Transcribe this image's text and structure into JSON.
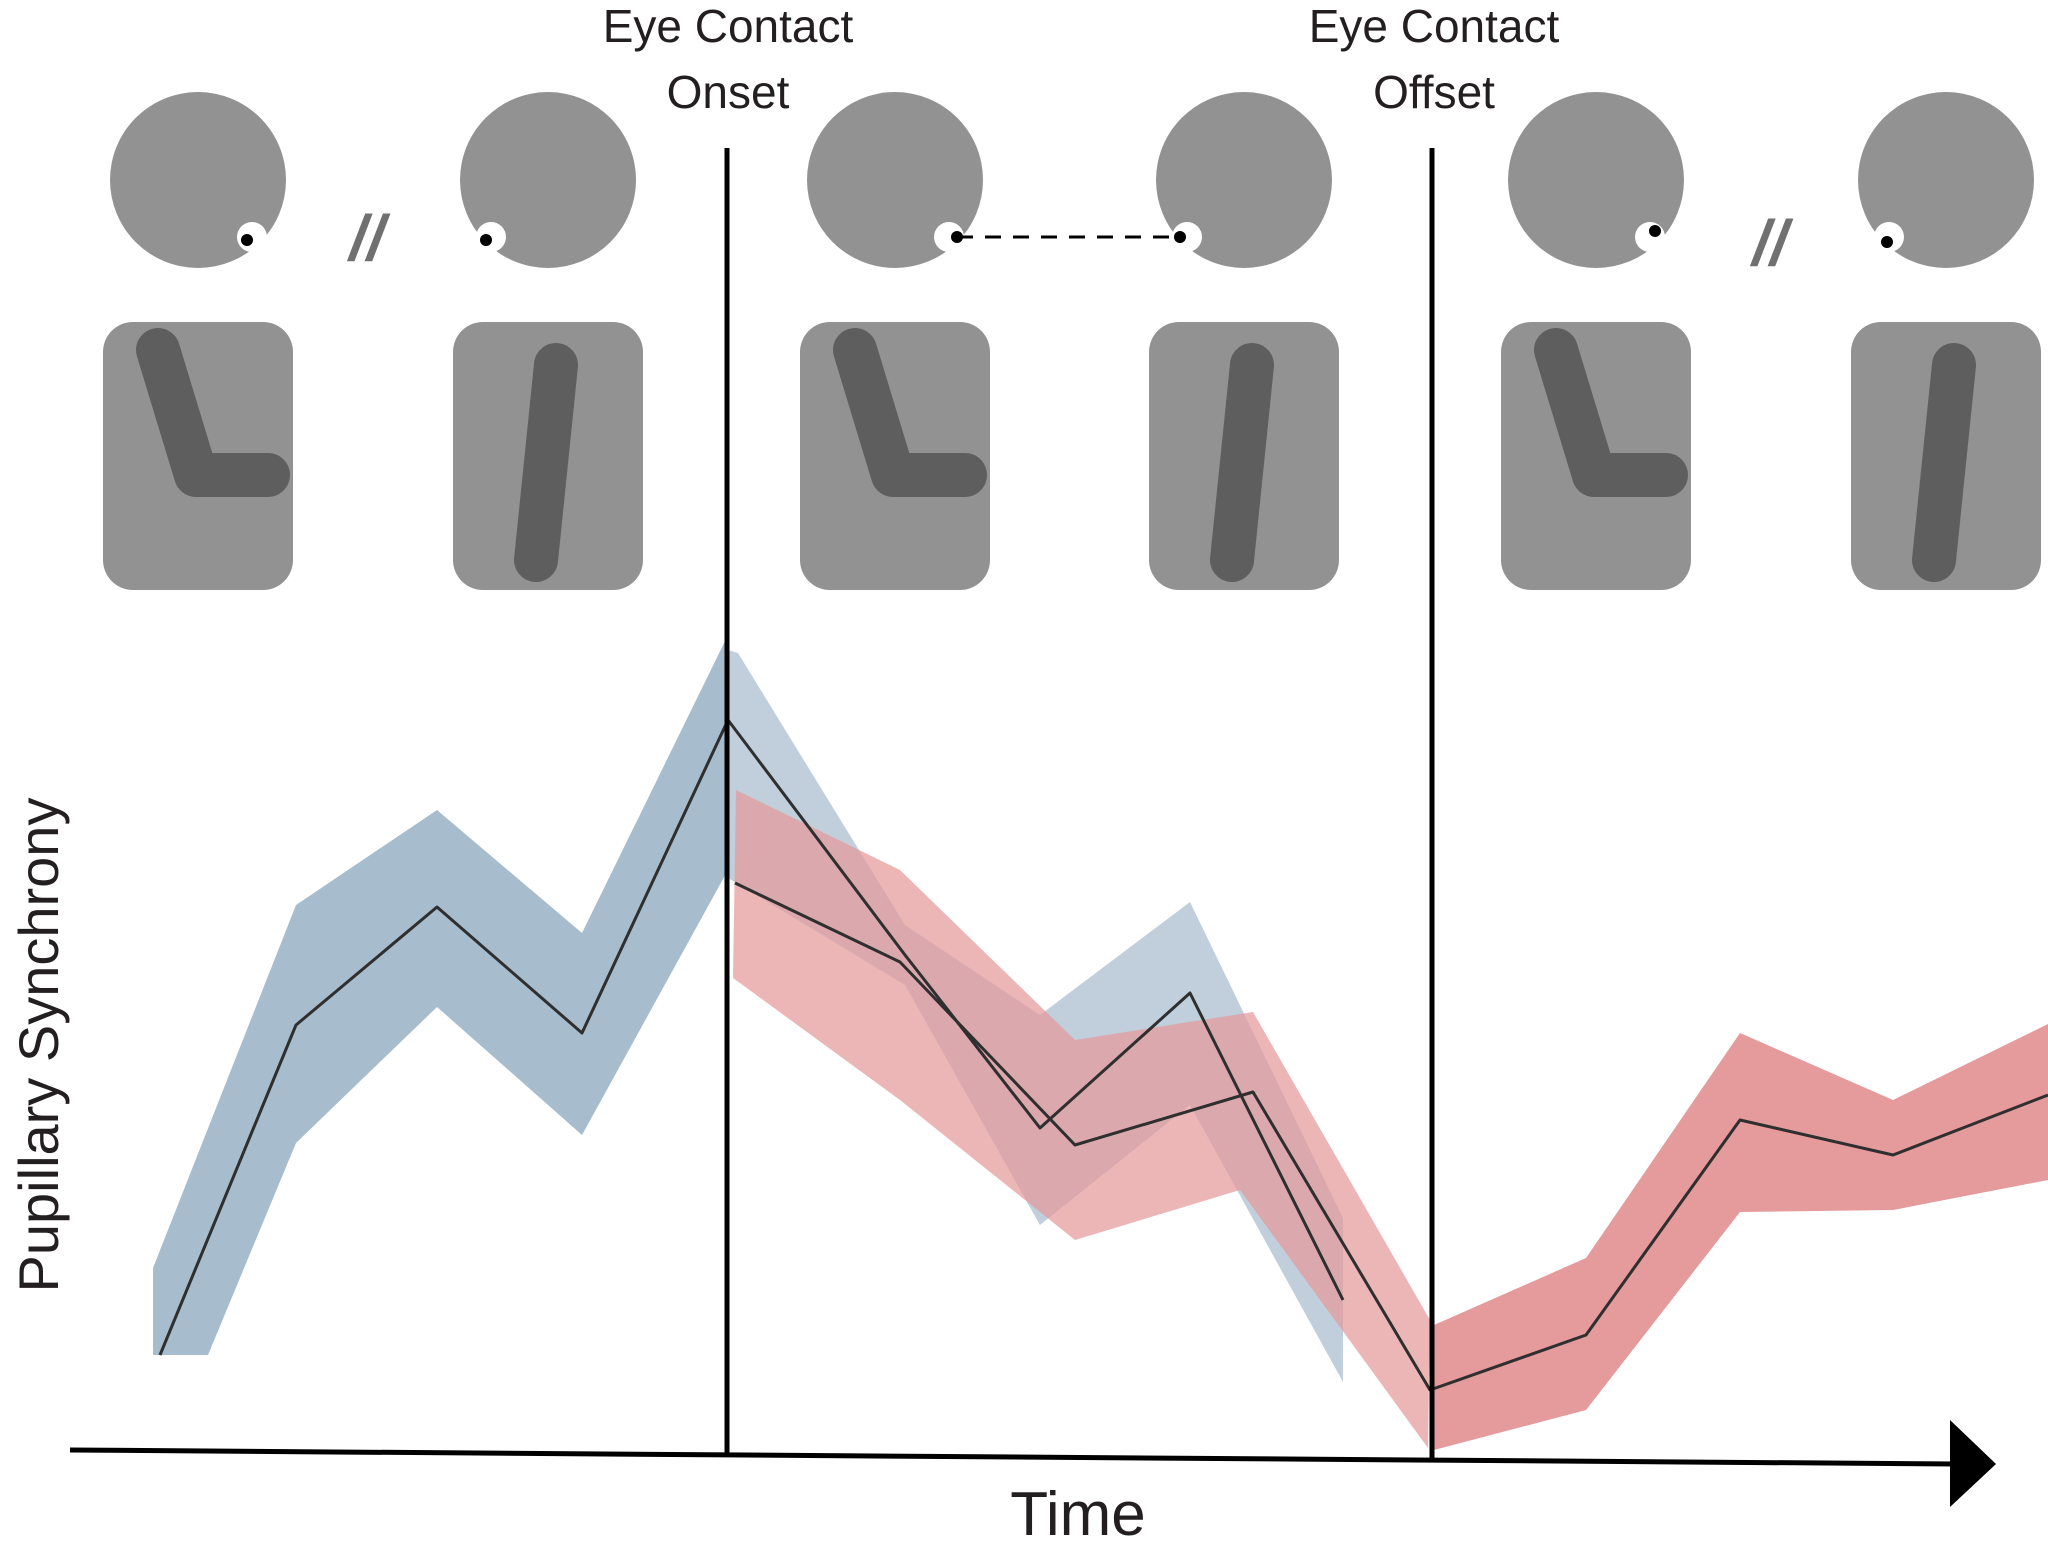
{
  "labels": {
    "onset_line1": "Eye Contact",
    "onset_line2": "Onset",
    "offset_line1": "Eye Contact",
    "offset_line2": "Offset",
    "x_axis": "Time",
    "y_axis": "Pupillary Synchrony"
  },
  "break_marks": [
    "//",
    "//"
  ],
  "colors": {
    "figure_body": "#929292",
    "figure_arm": "#5e5e5e",
    "blue_band": "#a7bccd",
    "red_band": "#e59a9b",
    "line": "#2f2f2f",
    "axis": "#000000"
  },
  "icons": {
    "person": "person-figure-icon",
    "eye": "eye-icon",
    "gaze": "gaze-dashed-line",
    "arrow": "arrowhead-icon"
  }
}
